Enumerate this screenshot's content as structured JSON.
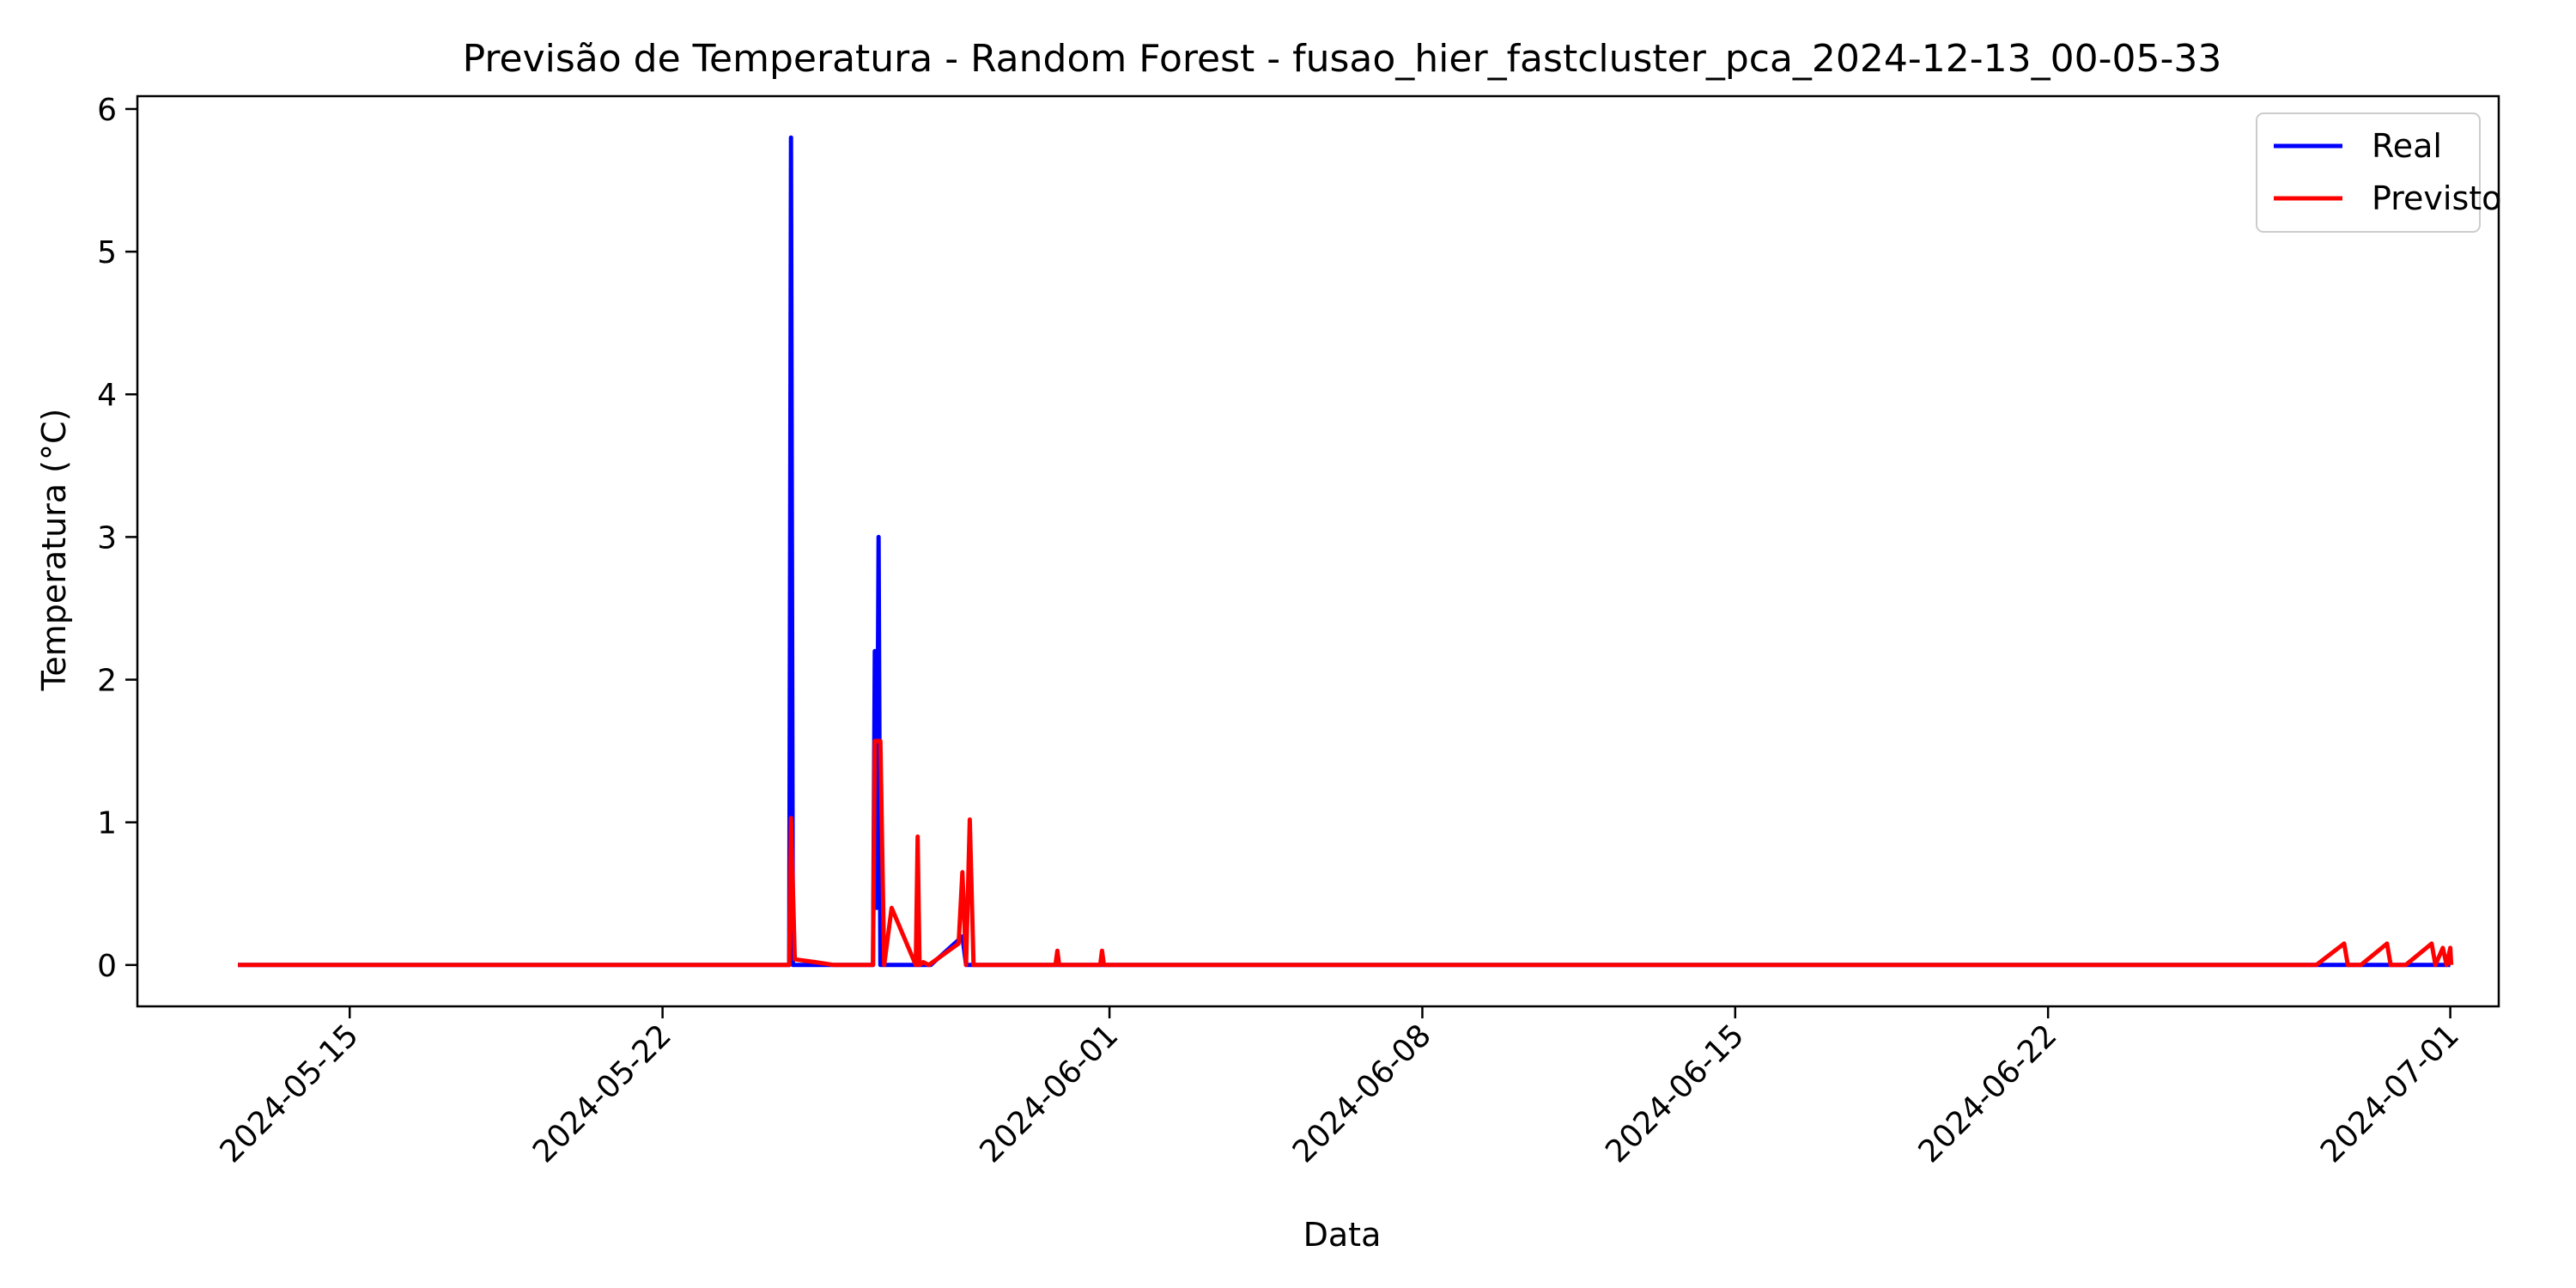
{
  "chart_data": {
    "type": "line",
    "title": "Previsão de Temperatura - Random Forest - fusao_hier_fastcluster_pca_2024-12-13_00-05-33",
    "xlabel": "Data",
    "ylabel": "Temperatura (°C)",
    "x_type": "date",
    "xlim": [
      "2024-05-10T06:00",
      "2024-07-02T02:00"
    ],
    "ylim": [
      -0.29,
      6.09
    ],
    "x_ticks": [
      "2024-05-15",
      "2024-05-22",
      "2024-06-01",
      "2024-06-08",
      "2024-06-15",
      "2024-06-22",
      "2024-07-01"
    ],
    "y_ticks": [
      0,
      1,
      2,
      3,
      4,
      5,
      6
    ],
    "grid": false,
    "legend_position": "top-right",
    "series": [
      {
        "name": "Real",
        "color": "#0000ff",
        "points": [
          [
            "2024-05-12T12:00",
            0
          ],
          [
            "2024-05-24T20:00",
            0
          ],
          [
            "2024-05-24T21:00",
            5.8
          ],
          [
            "2024-05-24T22:00",
            0
          ],
          [
            "2024-05-25T08:00",
            0
          ],
          [
            "2024-05-26T17:00",
            0
          ],
          [
            "2024-05-26T18:00",
            2.2
          ],
          [
            "2024-05-26T19:00",
            0.4
          ],
          [
            "2024-05-26T20:00",
            3.0
          ],
          [
            "2024-05-26T21:00",
            0
          ],
          [
            "2024-05-28T00:00",
            0
          ],
          [
            "2024-05-28T17:00",
            0.2
          ],
          [
            "2024-05-28T19:00",
            0
          ],
          [
            "2024-07-01T00:00",
            0
          ]
        ]
      },
      {
        "name": "Previsto",
        "color": "#ff0000",
        "points": [
          [
            "2024-05-12T12:00",
            0
          ],
          [
            "2024-05-24T20:00",
            0
          ],
          [
            "2024-05-24T21:00",
            1.03
          ],
          [
            "2024-05-24T23:00",
            0.04
          ],
          [
            "2024-05-25T10:00",
            0.02
          ],
          [
            "2024-05-25T20:00",
            0
          ],
          [
            "2024-05-26T17:00",
            0
          ],
          [
            "2024-05-26T18:00",
            1.57
          ],
          [
            "2024-05-26T21:00",
            1.57
          ],
          [
            "2024-05-26T23:00",
            0
          ],
          [
            "2024-05-27T03:00",
            0.4
          ],
          [
            "2024-05-27T16:00",
            0
          ],
          [
            "2024-05-27T17:00",
            0.9
          ],
          [
            "2024-05-27T18:00",
            0
          ],
          [
            "2024-05-27T20:00",
            0.02
          ],
          [
            "2024-05-27T23:00",
            0
          ],
          [
            "2024-05-28T15:00",
            0.15
          ],
          [
            "2024-05-28T17:00",
            0.65
          ],
          [
            "2024-05-28T19:00",
            0
          ],
          [
            "2024-05-28T21:00",
            1.02
          ],
          [
            "2024-05-28T23:00",
            0
          ],
          [
            "2024-05-30T19:00",
            0
          ],
          [
            "2024-05-30T20:00",
            0.1
          ],
          [
            "2024-05-30T21:00",
            0
          ],
          [
            "2024-05-31T19:00",
            0
          ],
          [
            "2024-05-31T20:00",
            0.1
          ],
          [
            "2024-05-31T21:00",
            0
          ],
          [
            "2024-06-28T00:00",
            0
          ],
          [
            "2024-06-28T15:00",
            0.15
          ],
          [
            "2024-06-28T17:00",
            0
          ],
          [
            "2024-06-29T00:00",
            0
          ],
          [
            "2024-06-29T14:00",
            0.15
          ],
          [
            "2024-06-29T16:00",
            0
          ],
          [
            "2024-06-30T00:00",
            0
          ],
          [
            "2024-06-30T14:00",
            0.15
          ],
          [
            "2024-06-30T16:00",
            0
          ],
          [
            "2024-06-30T20:00",
            0.12
          ],
          [
            "2024-06-30T22:00",
            0
          ],
          [
            "2024-07-01T00:00",
            0.12
          ],
          [
            "2024-07-01T00:30",
            0
          ]
        ]
      }
    ]
  }
}
